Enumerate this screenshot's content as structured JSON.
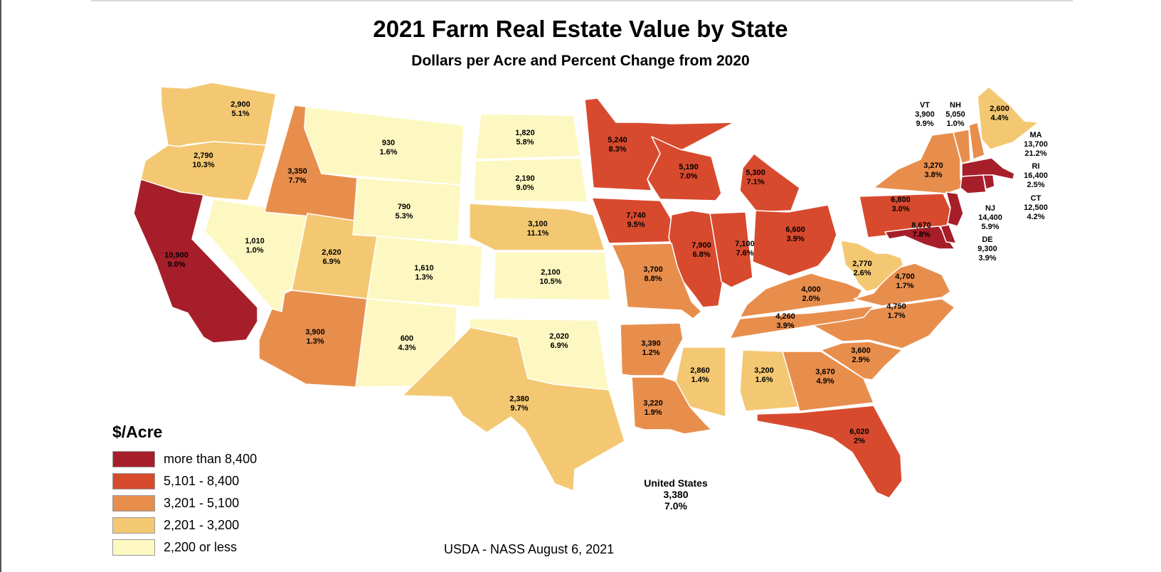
{
  "title": "2021 Farm Real Estate Value by State",
  "subtitle": "Dollars per Acre and Percent Change from 2020",
  "colors": {
    "tier1": "#a61e2a",
    "tier2": "#d84a2e",
    "tier3": "#e88e4d",
    "tier4": "#f4c872",
    "tier5": "#fdf8c2"
  },
  "legend": {
    "title": "$/Acre",
    "items": [
      {
        "label": "more than 8,400",
        "color": "#a61e2a"
      },
      {
        "label": "5,101 - 8,400",
        "color": "#d84a2e"
      },
      {
        "label": "3,201 - 5,100",
        "color": "#e88e4d"
      },
      {
        "label": "2,201 - 3,200",
        "color": "#f4c872"
      },
      {
        "label": "2,200 or less",
        "color": "#fdf8c2"
      }
    ]
  },
  "states": {
    "WA": {
      "value": "2,900",
      "change": "5.1%",
      "tier": 4
    },
    "OR": {
      "value": "2,790",
      "change": "10.3%",
      "tier": 4
    },
    "CA": {
      "value": "10,900",
      "change": "9.0%",
      "tier": 1
    },
    "ID": {
      "value": "3,350",
      "change": "7.7%",
      "tier": 3
    },
    "NV": {
      "value": "1,010",
      "change": "1.0%",
      "tier": 5
    },
    "MT": {
      "value": "930",
      "change": "1.6%",
      "tier": 5
    },
    "WY": {
      "value": "790",
      "change": "5.3%",
      "tier": 5
    },
    "UT": {
      "value": "2,620",
      "change": "6.9%",
      "tier": 4
    },
    "AZ": {
      "value": "3,900",
      "change": "1.3%",
      "tier": 3
    },
    "CO": {
      "value": "1,610",
      "change": "1.3%",
      "tier": 5
    },
    "NM": {
      "value": "600",
      "change": "4.3%",
      "tier": 5
    },
    "ND": {
      "value": "1,820",
      "change": "5.8%",
      "tier": 5
    },
    "SD": {
      "value": "2,190",
      "change": "9.0%",
      "tier": 5
    },
    "NE": {
      "value": "3,100",
      "change": "11.1%",
      "tier": 4
    },
    "KS": {
      "value": "2,100",
      "change": "10.5%",
      "tier": 5
    },
    "OK": {
      "value": "2,020",
      "change": "6.9%",
      "tier": 5
    },
    "TX": {
      "value": "2,380",
      "change": "9.7%",
      "tier": 4
    },
    "MN": {
      "value": "5,240",
      "change": "8.3%",
      "tier": 2
    },
    "IA": {
      "value": "7,740",
      "change": "9.5%",
      "tier": 2
    },
    "MO": {
      "value": "3,700",
      "change": "8.8%",
      "tier": 3
    },
    "AR": {
      "value": "3,390",
      "change": "1.2%",
      "tier": 3
    },
    "LA": {
      "value": "3,220",
      "change": "1.9%",
      "tier": 3
    },
    "WI": {
      "value": "5,190",
      "change": "7.0%",
      "tier": 2
    },
    "IL": {
      "value": "7,900",
      "change": "6.8%",
      "tier": 2
    },
    "MI": {
      "value": "5,300",
      "change": "7.1%",
      "tier": 2
    },
    "IN": {
      "value": "7,100",
      "change": "7.6%",
      "tier": 2
    },
    "OH": {
      "value": "6,600",
      "change": "3.9%",
      "tier": 2
    },
    "KY": {
      "value": "4,000",
      "change": "2.0%",
      "tier": 3
    },
    "TN": {
      "value": "4,260",
      "change": "3.9%",
      "tier": 3
    },
    "MS": {
      "value": "2,860",
      "change": "1.4%",
      "tier": 4
    },
    "AL": {
      "value": "3,200",
      "change": "1.6%",
      "tier": 4
    },
    "GA": {
      "value": "3,670",
      "change": "4.9%",
      "tier": 3
    },
    "FL": {
      "value": "6,020",
      "change": "2%",
      "tier": 2
    },
    "SC": {
      "value": "3,600",
      "change": "2.9%",
      "tier": 3
    },
    "NC": {
      "value": "4,750",
      "change": "1.7%",
      "tier": 3
    },
    "VA": {
      "value": "4,700",
      "change": "1.7%",
      "tier": 3
    },
    "WV": {
      "value": "2,770",
      "change": "2.6%",
      "tier": 4
    },
    "PA": {
      "value": "6,800",
      "change": "3.0%",
      "tier": 2
    },
    "NY": {
      "value": "3,270",
      "change": "3.8%",
      "tier": 3
    },
    "MD": {
      "value": "8,670",
      "change": "7.8%",
      "tier": 1
    },
    "ME": {
      "value": "2,600",
      "change": "4.4%",
      "tier": 4
    },
    "VT": {
      "abbr": "VT",
      "value": "3,900",
      "change": "9.9%",
      "tier": 3
    },
    "NH": {
      "abbr": "NH",
      "value": "5,050",
      "change": "1.0%",
      "tier": 3
    },
    "MA": {
      "abbr": "MA",
      "value": "13,700",
      "change": "21.2%",
      "tier": 1
    },
    "RI": {
      "abbr": "RI",
      "value": "16,400",
      "change": "2.5%",
      "tier": 1
    },
    "CT": {
      "abbr": "CT",
      "value": "12,500",
      "change": "4.2%",
      "tier": 1
    },
    "NJ": {
      "abbr": "NJ",
      "value": "14,400",
      "change": "5.9%",
      "tier": 1
    },
    "DE": {
      "abbr": "DE",
      "value": "9,300",
      "change": "3.9%",
      "tier": 1
    }
  },
  "us_total": {
    "label": "United States",
    "value": "3,380",
    "change": "7.0%"
  },
  "source": "USDA - NASS August 6, 2021"
}
